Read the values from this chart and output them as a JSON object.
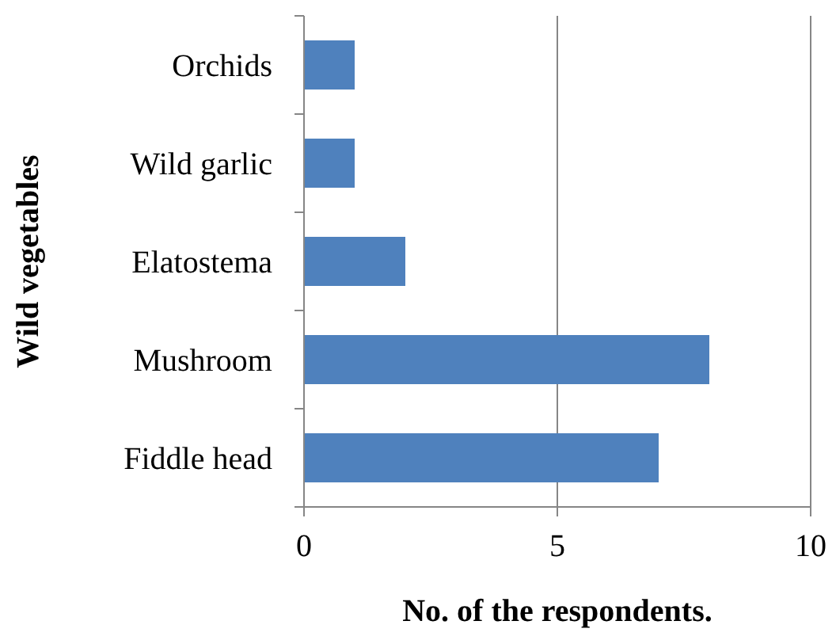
{
  "chart_data": {
    "type": "bar",
    "orientation": "horizontal",
    "xlabel": "No. of the respondents.",
    "ylabel": "Wild vegetables",
    "categories": [
      "Orchids",
      "Wild garlic",
      "Elatostema",
      "Mushroom",
      "Fiddle head"
    ],
    "values": [
      1,
      1,
      2,
      8,
      7
    ],
    "color": "#4f81bd",
    "xlim": [
      0,
      10
    ],
    "xticks": [
      0,
      5,
      10
    ],
    "grid": "x"
  }
}
